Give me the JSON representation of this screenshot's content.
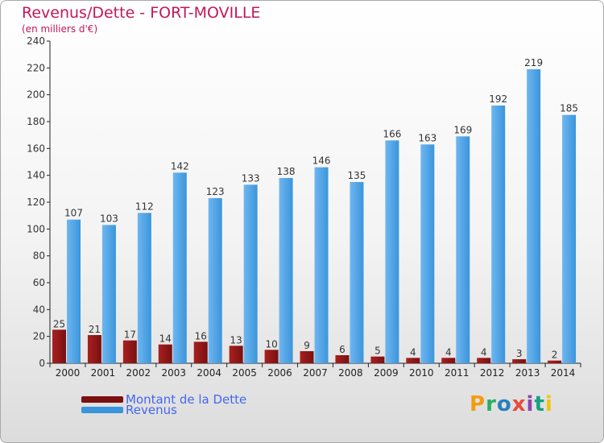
{
  "title": "Revenus/Dette - FORT-MOVILLE",
  "subtitle": "(en milliers d'€)",
  "colors": {
    "debt": "#7a1010",
    "revenue": "#3a95dc",
    "title": "#c2185b",
    "legend_text": "#4466ee"
  },
  "legend": {
    "debt_label": "Montant de la Dette",
    "revenue_label": "Revenus"
  },
  "logo_text": "Proxiti",
  "chart_data": {
    "type": "bar",
    "title": "Revenus/Dette - FORT-MOVILLE",
    "subtitle": "(en milliers d'€)",
    "categories": [
      "2000",
      "2001",
      "2002",
      "2003",
      "2004",
      "2005",
      "2006",
      "2007",
      "2008",
      "2009",
      "2010",
      "2011",
      "2012",
      "2013",
      "2014"
    ],
    "series": [
      {
        "name": "Montant de la Dette",
        "values": [
          25,
          21,
          17,
          14,
          16,
          13,
          10,
          9,
          6,
          5,
          4,
          4,
          4,
          3,
          2
        ]
      },
      {
        "name": "Revenus",
        "values": [
          107,
          103,
          112,
          142,
          123,
          133,
          138,
          146,
          135,
          166,
          163,
          169,
          192,
          219,
          185
        ]
      }
    ],
    "ylim": [
      0,
      240
    ],
    "yticks": [
      0,
      20,
      40,
      60,
      80,
      100,
      120,
      140,
      160,
      180,
      200,
      220,
      240
    ],
    "grid": false,
    "legend_position": "bottom-left"
  }
}
